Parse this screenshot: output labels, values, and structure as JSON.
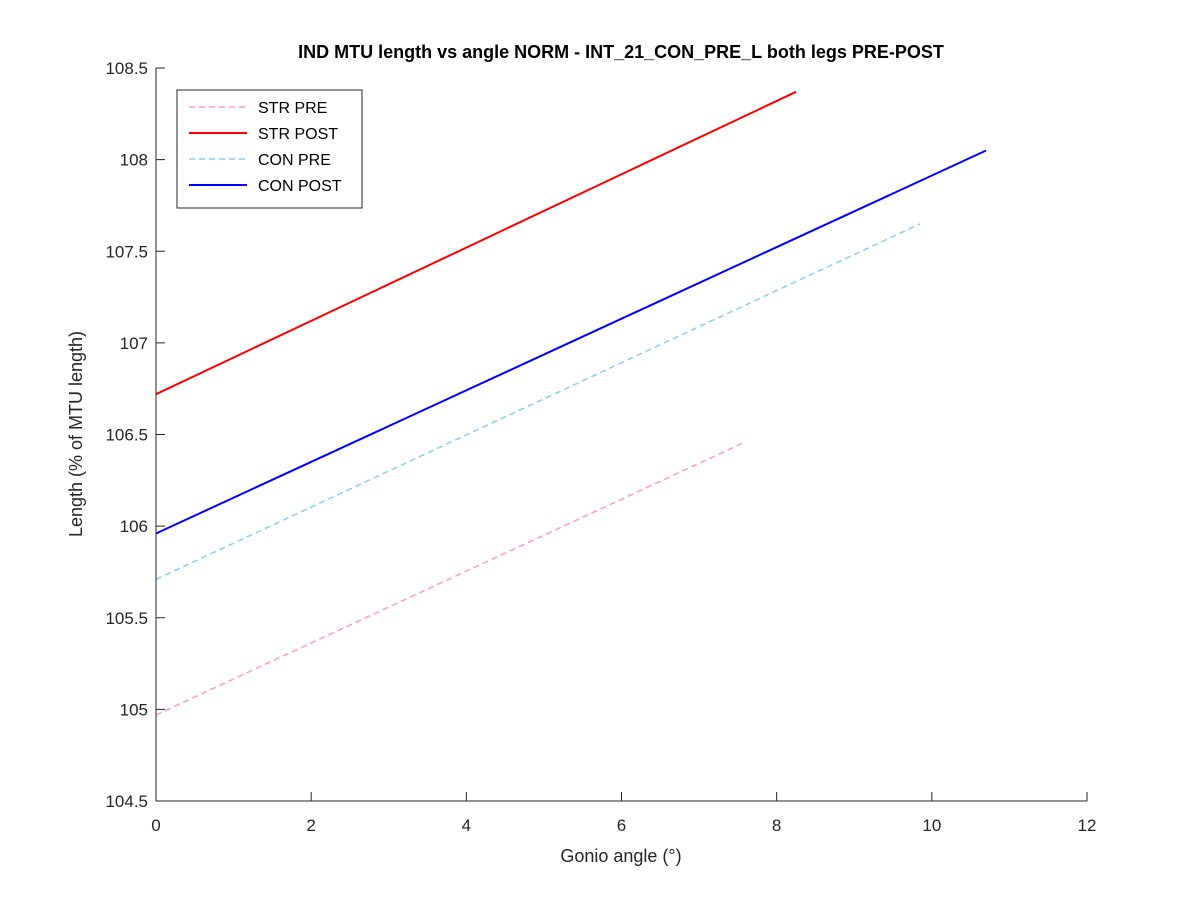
{
  "chart_data": {
    "type": "line",
    "title": "IND MTU length vs angle NORM - INT_21_CON_PRE_L both legs PRE-POST",
    "xlabel": "Gonio angle (°)",
    "ylabel": "Length (% of MTU length)",
    "xlim": [
      0,
      12
    ],
    "ylim": [
      104.5,
      108.5
    ],
    "xticks": [
      0,
      2,
      4,
      6,
      8,
      10,
      12
    ],
    "xtick_labels": [
      "0",
      "2",
      "4",
      "6",
      "8",
      "10",
      "12"
    ],
    "yticks": [
      104.5,
      105,
      105.5,
      106,
      106.5,
      107,
      107.5,
      108,
      108.5
    ],
    "ytick_labels": [
      "104.5",
      "105",
      "105.5",
      "106",
      "106.5",
      "107",
      "107.5",
      "108",
      "108.5"
    ],
    "grid": false,
    "legend_position": "top-left",
    "series": [
      {
        "name": "STR PRE",
        "color": "#ff99cc",
        "style": "dashed",
        "x": [
          0,
          7.6
        ],
        "y": [
          104.97,
          106.46
        ]
      },
      {
        "name": "STR POST",
        "color": "#ff0000",
        "style": "solid",
        "x": [
          0,
          8.25
        ],
        "y": [
          106.72,
          108.37
        ]
      },
      {
        "name": "CON PRE",
        "color": "#87cefa",
        "style": "dashed",
        "x": [
          0,
          9.85
        ],
        "y": [
          105.71,
          107.65
        ]
      },
      {
        "name": "CON POST",
        "color": "#0000ff",
        "style": "solid",
        "x": [
          0,
          10.7
        ],
        "y": [
          105.96,
          108.05
        ]
      }
    ]
  }
}
